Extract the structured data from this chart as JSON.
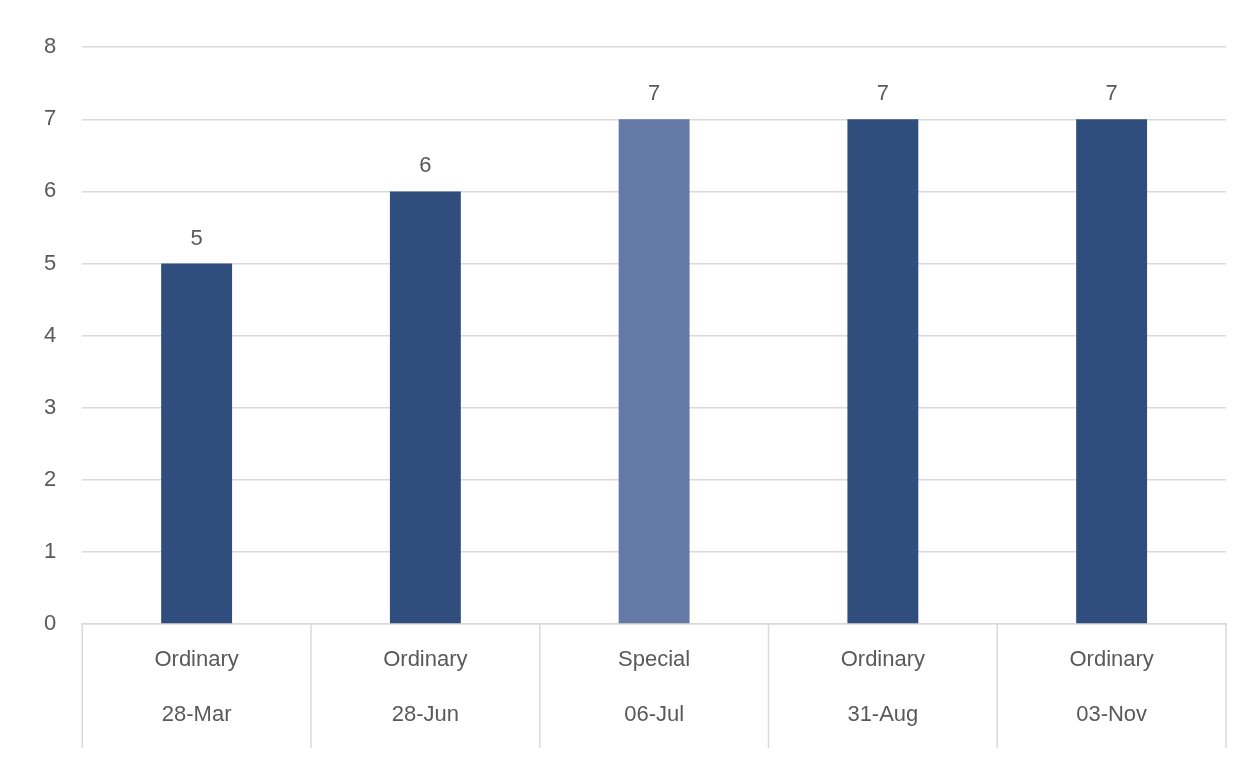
{
  "chart_data": {
    "type": "bar",
    "categories": [
      "Ordinary\n28-Mar",
      "Ordinary\n28-Jun",
      "Special\n06-Jul",
      "Ordinary\n31-Aug",
      "Ordinary\n03-Nov"
    ],
    "values": [
      5,
      6,
      7,
      7,
      7
    ],
    "colors": [
      "#2f4e7e",
      "#2f4e7e",
      "#6479a6",
      "#2f4e7e",
      "#2f4e7e"
    ],
    "ylim": [
      0,
      8
    ],
    "yticks": [
      0,
      1,
      2,
      3,
      4,
      5,
      6,
      7,
      8
    ],
    "grid": "y",
    "data_labels": true,
    "legend": false
  }
}
